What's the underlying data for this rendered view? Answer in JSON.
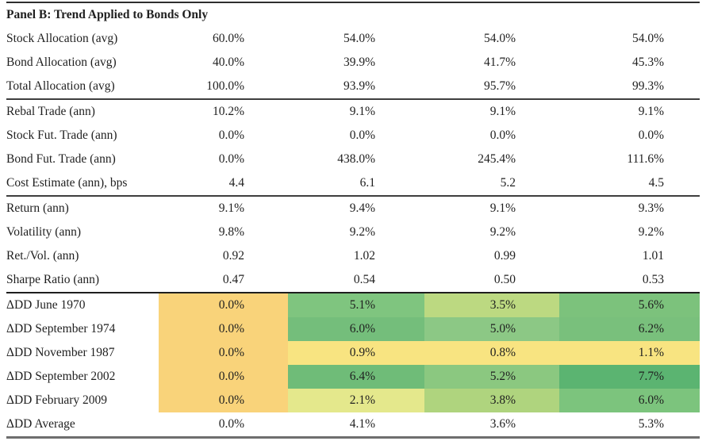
{
  "panel": {
    "title": "Panel B: Trend Applied to Bonds Only"
  },
  "colors": {
    "highlight_orange": "#F9D37A",
    "highlight_yellow": "#F8E481",
    "rule_gray": "#3e3e3e",
    "rule_black": "#1e1e1e",
    "rule_bottom": "#6e6e6e"
  },
  "sections": [
    {
      "name": "allocation",
      "rows": [
        {
          "label": "Stock Allocation (avg)",
          "values": [
            "60.0%",
            "54.0%",
            "54.0%",
            "54.0%"
          ]
        },
        {
          "label": "Bond Allocation (avg)",
          "values": [
            "40.0%",
            "39.9%",
            "41.7%",
            "45.3%"
          ]
        },
        {
          "label": "Total Allocation (avg)",
          "values": [
            "100.0%",
            "93.9%",
            "95.7%",
            "99.3%"
          ]
        }
      ]
    },
    {
      "name": "trading",
      "rows": [
        {
          "label": "Rebal Trade (ann)",
          "values": [
            "10.2%",
            "9.1%",
            "9.1%",
            "9.1%"
          ]
        },
        {
          "label": "Stock Fut. Trade (ann)",
          "values": [
            "0.0%",
            "0.0%",
            "0.0%",
            "0.0%"
          ]
        },
        {
          "label": "Bond Fut. Trade (ann)",
          "values": [
            "0.0%",
            "438.0%",
            "245.4%",
            "111.6%"
          ]
        },
        {
          "label": "Cost Estimate (ann), bps",
          "values": [
            "4.4",
            "6.1",
            "5.2",
            "4.5"
          ]
        }
      ]
    },
    {
      "name": "performance",
      "rows": [
        {
          "label": "Return (ann)",
          "values": [
            "9.1%",
            "9.4%",
            "9.1%",
            "9.3%"
          ]
        },
        {
          "label": "Volatility (ann)",
          "values": [
            "9.8%",
            "9.2%",
            "9.2%",
            "9.2%"
          ]
        },
        {
          "label": "Ret./Vol. (ann)",
          "values": [
            "0.92",
            "1.02",
            "0.99",
            "1.01"
          ]
        },
        {
          "label": "Sharpe Ratio (ann)",
          "values": [
            "0.47",
            "0.54",
            "0.50",
            "0.53"
          ]
        }
      ]
    }
  ],
  "drawdown_rows": [
    {
      "label": "ΔDD June 1970",
      "values": [
        "0.0%",
        "5.1%",
        "3.5%",
        "5.6%"
      ],
      "colors": [
        "#F9D37A",
        "#7FC57F",
        "#BCD981",
        "#7CC27C"
      ]
    },
    {
      "label": "ΔDD September 1974",
      "values": [
        "0.0%",
        "6.0%",
        "5.0%",
        "6.2%"
      ],
      "colors": [
        "#F9D37A",
        "#74BE7B",
        "#8CC885",
        "#79C07C"
      ]
    },
    {
      "label": "ΔDD November 1987",
      "values": [
        "0.0%",
        "0.9%",
        "0.8%",
        "1.1%"
      ],
      "colors": [
        "#F9D37A",
        "#F8E481",
        "#F8E481",
        "#F8E481"
      ]
    },
    {
      "label": "ΔDD September 2002",
      "values": [
        "0.0%",
        "6.4%",
        "5.2%",
        "7.7%"
      ],
      "colors": [
        "#F9D37A",
        "#6FBC78",
        "#8BC880",
        "#5BB471"
      ]
    },
    {
      "label": "ΔDD February 2009",
      "values": [
        "0.0%",
        "2.1%",
        "3.8%",
        "6.0%"
      ],
      "colors": [
        "#F9D37A",
        "#E4E88C",
        "#AFD47E",
        "#7CC47D"
      ]
    },
    {
      "label": "ΔDD Average",
      "values": [
        "0.0%",
        "4.1%",
        "3.6%",
        "5.3%"
      ],
      "colors": [
        null,
        null,
        null,
        null
      ]
    }
  ]
}
